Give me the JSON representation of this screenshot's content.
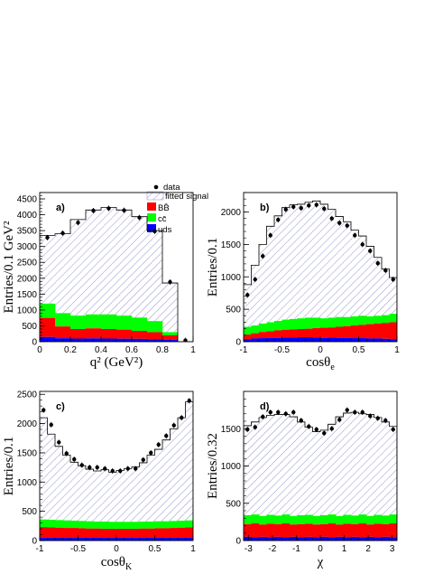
{
  "colors": {
    "bbbar": "#ff0000",
    "ccbar": "#00ff00",
    "uds": "#0000ff",
    "signal_hatch": "#8a8ac8",
    "line": "#000000"
  },
  "legend": {
    "entries": [
      {
        "key": "data",
        "label": "data",
        "marker": "dot"
      },
      {
        "key": "signal",
        "label": "fitted signal",
        "marker": "hatch"
      },
      {
        "key": "bbbar",
        "label": "BB̄",
        "marker": "fill"
      },
      {
        "key": "ccbar",
        "label": "cc̄",
        "marker": "fill"
      },
      {
        "key": "uds",
        "label": "uds",
        "marker": "fill"
      }
    ]
  },
  "chart_data": [
    {
      "type": "bar",
      "stacked": true,
      "panel_label": "a)",
      "xlabel": "q² (GeV²)",
      "ylabel": "Entries/0.1 GeV²",
      "xlim": [
        0,
        1
      ],
      "ylim": [
        0,
        4700
      ],
      "xticks": [
        0,
        0.2,
        0.4,
        0.6,
        0.8,
        1
      ],
      "xtick_labels": [
        "0",
        "0.2",
        "0.4",
        "0.6",
        "0.8",
        "1"
      ],
      "yticks": [
        0,
        500,
        1000,
        1500,
        2000,
        2500,
        3000,
        3500,
        4000,
        4500
      ],
      "ytick_labels": [
        "0",
        "500",
        "1000",
        "1500",
        "2000",
        "2500",
        "3000",
        "3500",
        "4000",
        "4500"
      ],
      "bin_edges": [
        0,
        0.1,
        0.2,
        0.3,
        0.4,
        0.5,
        0.6,
        0.7,
        0.8,
        0.9,
        1.0
      ],
      "stack": {
        "uds": [
          150,
          110,
          100,
          105,
          100,
          95,
          90,
          80,
          60,
          0
        ],
        "bbbar": [
          750,
          480,
          400,
          420,
          400,
          380,
          340,
          300,
          200,
          0
        ],
        "ccbar": [
          1200,
          900,
          820,
          860,
          860,
          820,
          760,
          650,
          300,
          0
        ],
        "total": [
          3350,
          3400,
          3850,
          4150,
          4230,
          4150,
          3940,
          3500,
          1850,
          0
        ]
      },
      "data_points": {
        "x": [
          0.05,
          0.15,
          0.25,
          0.35,
          0.45,
          0.55,
          0.65,
          0.75,
          0.85,
          0.95
        ],
        "y": [
          3280,
          3420,
          3750,
          4130,
          4200,
          4140,
          3910,
          3480,
          1880,
          40
        ]
      }
    },
    {
      "type": "bar",
      "stacked": true,
      "panel_label": "b)",
      "xlabel": "cosθe",
      "ylabel": "Entries/0.1",
      "xlim": [
        -1,
        1
      ],
      "ylim": [
        0,
        2300
      ],
      "xticks": [
        -1,
        -0.5,
        0,
        0.5,
        1
      ],
      "xtick_labels": [
        "-1",
        "-0.5",
        "0",
        "0.5",
        "1"
      ],
      "yticks": [
        0,
        500,
        1000,
        1500,
        2000
      ],
      "ytick_labels": [
        "0",
        "500",
        "1000",
        "1500",
        "2000"
      ],
      "bin_edges": [
        -1,
        -0.9,
        -0.8,
        -0.7,
        -0.6,
        -0.5,
        -0.4,
        -0.3,
        -0.2,
        -0.1,
        0,
        0.1,
        0.2,
        0.3,
        0.4,
        0.5,
        0.6,
        0.7,
        0.8,
        0.9,
        1.0
      ],
      "stack": {
        "uds": [
          40,
          50,
          55,
          60,
          60,
          65,
          65,
          70,
          70,
          65,
          60,
          65,
          60,
          60,
          55,
          55,
          50,
          50,
          45,
          40
        ],
        "bbbar": [
          110,
          130,
          150,
          160,
          175,
          185,
          190,
          195,
          200,
          210,
          215,
          220,
          230,
          240,
          250,
          260,
          270,
          280,
          290,
          300
        ],
        "ccbar": [
          230,
          250,
          280,
          300,
          320,
          340,
          350,
          360,
          370,
          370,
          360,
          370,
          380,
          380,
          390,
          400,
          390,
          400,
          410,
          430
        ],
        "total": [
          880,
          1180,
          1500,
          1780,
          1940,
          2070,
          2110,
          2120,
          2150,
          2170,
          2120,
          2040,
          1930,
          1850,
          1720,
          1630,
          1470,
          1300,
          1120,
          990
        ]
      },
      "data_points": {
        "x": [
          -0.95,
          -0.85,
          -0.75,
          -0.65,
          -0.55,
          -0.45,
          -0.35,
          -0.25,
          -0.15,
          -0.05,
          0.05,
          0.15,
          0.25,
          0.35,
          0.45,
          0.55,
          0.65,
          0.75,
          0.85,
          0.95
        ],
        "y": [
          720,
          960,
          1320,
          1640,
          1880,
          2040,
          2080,
          2060,
          2100,
          2110,
          2050,
          1900,
          1830,
          1790,
          1640,
          1500,
          1400,
          1210,
          1100,
          960
        ]
      }
    },
    {
      "type": "bar",
      "stacked": true,
      "panel_label": "c)",
      "xlabel": "cosθK",
      "ylabel": "Entries/0.1",
      "xlim": [
        -1,
        1
      ],
      "ylim": [
        0,
        2550
      ],
      "xticks": [
        -1,
        -0.5,
        0,
        0.5,
        1
      ],
      "xtick_labels": [
        "-1",
        "-0.5",
        "0",
        "0.5",
        "1"
      ],
      "yticks": [
        0,
        500,
        1000,
        1500,
        2000,
        2500
      ],
      "ytick_labels": [
        "0",
        "500",
        "1000",
        "1500",
        "2000",
        "2500"
      ],
      "bin_edges": [
        -1,
        -0.9,
        -0.8,
        -0.7,
        -0.6,
        -0.5,
        -0.4,
        -0.3,
        -0.2,
        -0.1,
        0,
        0.1,
        0.2,
        0.3,
        0.4,
        0.5,
        0.6,
        0.7,
        0.8,
        0.9,
        1.0
      ],
      "stack": {
        "uds": [
          45,
          45,
          45,
          45,
          45,
          45,
          45,
          45,
          45,
          45,
          45,
          45,
          45,
          45,
          45,
          45,
          45,
          45,
          45,
          45
        ],
        "bbbar": [
          230,
          225,
          220,
          215,
          215,
          210,
          205,
          205,
          200,
          200,
          200,
          200,
          200,
          205,
          205,
          210,
          210,
          215,
          220,
          225
        ],
        "ccbar": [
          360,
          355,
          350,
          345,
          340,
          335,
          330,
          325,
          325,
          320,
          320,
          320,
          320,
          325,
          325,
          330,
          330,
          335,
          340,
          345
        ],
        "total": [
          2100,
          1820,
          1610,
          1460,
          1340,
          1280,
          1220,
          1190,
          1210,
          1170,
          1200,
          1230,
          1260,
          1330,
          1460,
          1560,
          1720,
          1910,
          2100,
          2370
        ]
      },
      "data_points": {
        "x": [
          -0.95,
          -0.85,
          -0.75,
          -0.65,
          -0.55,
          -0.45,
          -0.35,
          -0.25,
          -0.15,
          -0.05,
          0.05,
          0.15,
          0.25,
          0.35,
          0.45,
          0.55,
          0.65,
          0.75,
          0.85,
          0.95
        ],
        "y": [
          2230,
          1980,
          1680,
          1490,
          1390,
          1290,
          1250,
          1250,
          1230,
          1190,
          1190,
          1230,
          1230,
          1380,
          1500,
          1640,
          1790,
          1970,
          2100,
          2390
        ]
      }
    },
    {
      "type": "bar",
      "stacked": true,
      "panel_label": "d)",
      "xlabel": "χ",
      "ylabel": "Entries/0.32",
      "xlim": [
        -3.2,
        3.2
      ],
      "ylim": [
        0,
        2000
      ],
      "xticks": [
        -3,
        -2,
        -1,
        0,
        1,
        2,
        3
      ],
      "xtick_labels": [
        "-3",
        "-2",
        "-1",
        "0",
        "1",
        "2",
        "3"
      ],
      "yticks": [
        0,
        500,
        1000,
        1500
      ],
      "ytick_labels": [
        "0",
        "500",
        "1000",
        "1500"
      ],
      "bin_edges": [
        -3.2,
        -2.88,
        -2.56,
        -2.24,
        -1.92,
        -1.6,
        -1.28,
        -0.96,
        -0.64,
        -0.32,
        0,
        0.32,
        0.64,
        0.96,
        1.28,
        1.6,
        1.92,
        2.24,
        2.56,
        2.88,
        3.2
      ],
      "stack": {
        "uds": [
          50,
          45,
          50,
          45,
          50,
          45,
          50,
          45,
          50,
          45,
          50,
          45,
          50,
          45,
          50,
          45,
          50,
          45,
          50,
          45
        ],
        "bbbar": [
          220,
          230,
          215,
          225,
          220,
          230,
          215,
          220,
          225,
          215,
          220,
          230,
          215,
          225,
          220,
          230,
          215,
          225,
          220,
          230
        ],
        "ccbar": [
          340,
          350,
          330,
          345,
          335,
          350,
          330,
          340,
          345,
          330,
          340,
          350,
          330,
          345,
          335,
          350,
          330,
          345,
          335,
          350
        ],
        "total": [
          1540,
          1590,
          1650,
          1680,
          1690,
          1690,
          1660,
          1590,
          1520,
          1460,
          1480,
          1560,
          1660,
          1710,
          1720,
          1700,
          1690,
          1650,
          1590,
          1530
        ]
      },
      "data_points": {
        "x": [
          -3.04,
          -2.72,
          -2.4,
          -2.08,
          -1.76,
          -1.44,
          -1.12,
          -0.8,
          -0.48,
          -0.16,
          0.16,
          0.48,
          0.8,
          1.12,
          1.44,
          1.76,
          2.08,
          2.4,
          2.72,
          3.04
        ],
        "y": [
          1490,
          1520,
          1660,
          1720,
          1720,
          1700,
          1720,
          1610,
          1530,
          1490,
          1440,
          1500,
          1620,
          1750,
          1720,
          1720,
          1670,
          1640,
          1610,
          1490
        ]
      }
    }
  ]
}
